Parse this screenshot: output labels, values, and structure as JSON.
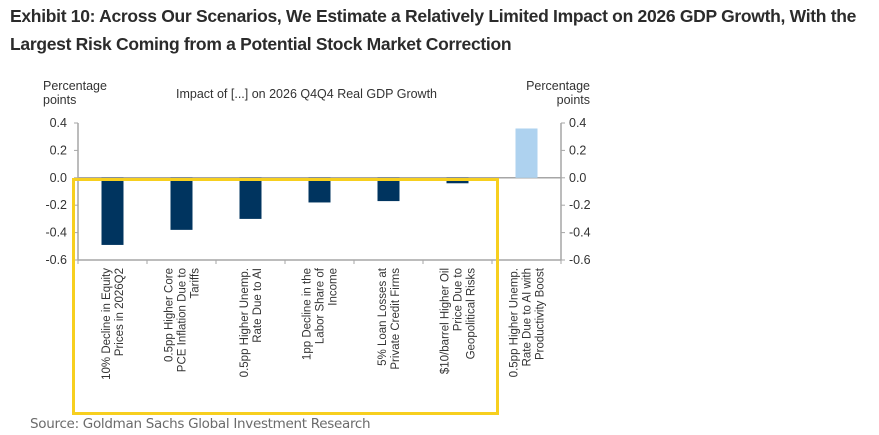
{
  "title": "Exhibit 10: Across Our Scenarios, We Estimate a Relatively Limited Impact on 2026 GDP Growth, With the Largest Risk Coming from a Potential Stock Market Correction",
  "source": "Source: Goldman Sachs Global Investment Research",
  "colors": {
    "negative_bar": "#00345f",
    "positive_bar": "#aed2ef",
    "axis": "#a6a6a6",
    "highlight_box": "#f7cf1f"
  },
  "chart_data": {
    "type": "bar",
    "title": "Impact of [...] on 2026 Q4Q4 Real GDP Growth",
    "xlabel": "",
    "ylabel": "Percentage points",
    "ylabel_right": "Percentage points",
    "ylim": [
      -0.6,
      0.4
    ],
    "yticks": [
      0.4,
      0.2,
      0.0,
      -0.2,
      -0.4,
      -0.6
    ],
    "ytick_labels": [
      "0.4",
      "0.2",
      "0.0",
      "-0.2",
      "-0.4",
      "-0.6"
    ],
    "grid": false,
    "legend": "none",
    "categories": [
      "10% Decline in Equity Prices in 2026Q2",
      "0.5pp Higher Core PCE Inflation Due to Tariffs",
      "0.5pp Higher Unemp. Rate Due to AI",
      "1pp Decline in the Labor Share of Income",
      "5% Loan Losses at Private Credit Firms",
      "$10/barrel Higher Oil Price Due to Geopolitical Risks",
      "0.5pp Higher Unemp. Rate Due to AI with Productivity Boost"
    ],
    "category_lines": [
      [
        "10% Decline in Equity",
        "Prices in 2026Q2"
      ],
      [
        "0.5pp Higher Core",
        "PCE Inflation Due to",
        "Tariffs"
      ],
      [
        "0.5pp Higher Unemp.",
        "Rate Due to AI"
      ],
      [
        "1pp Decline in the",
        "Labor Share of",
        "Income"
      ],
      [
        "5% Loan Losses at",
        "Private Credit Firms"
      ],
      [
        "$10/barrel Higher Oil",
        "Price Due to",
        "Geopolitical Risks"
      ],
      [
        "0.5pp Higher Unemp.",
        "Rate Due to AI with",
        "Productivity Boost"
      ]
    ],
    "values": [
      -0.49,
      -0.38,
      -0.3,
      -0.18,
      -0.17,
      -0.04,
      0.36
    ],
    "highlighted_categories": [
      0,
      1,
      2,
      3,
      4,
      5
    ]
  }
}
